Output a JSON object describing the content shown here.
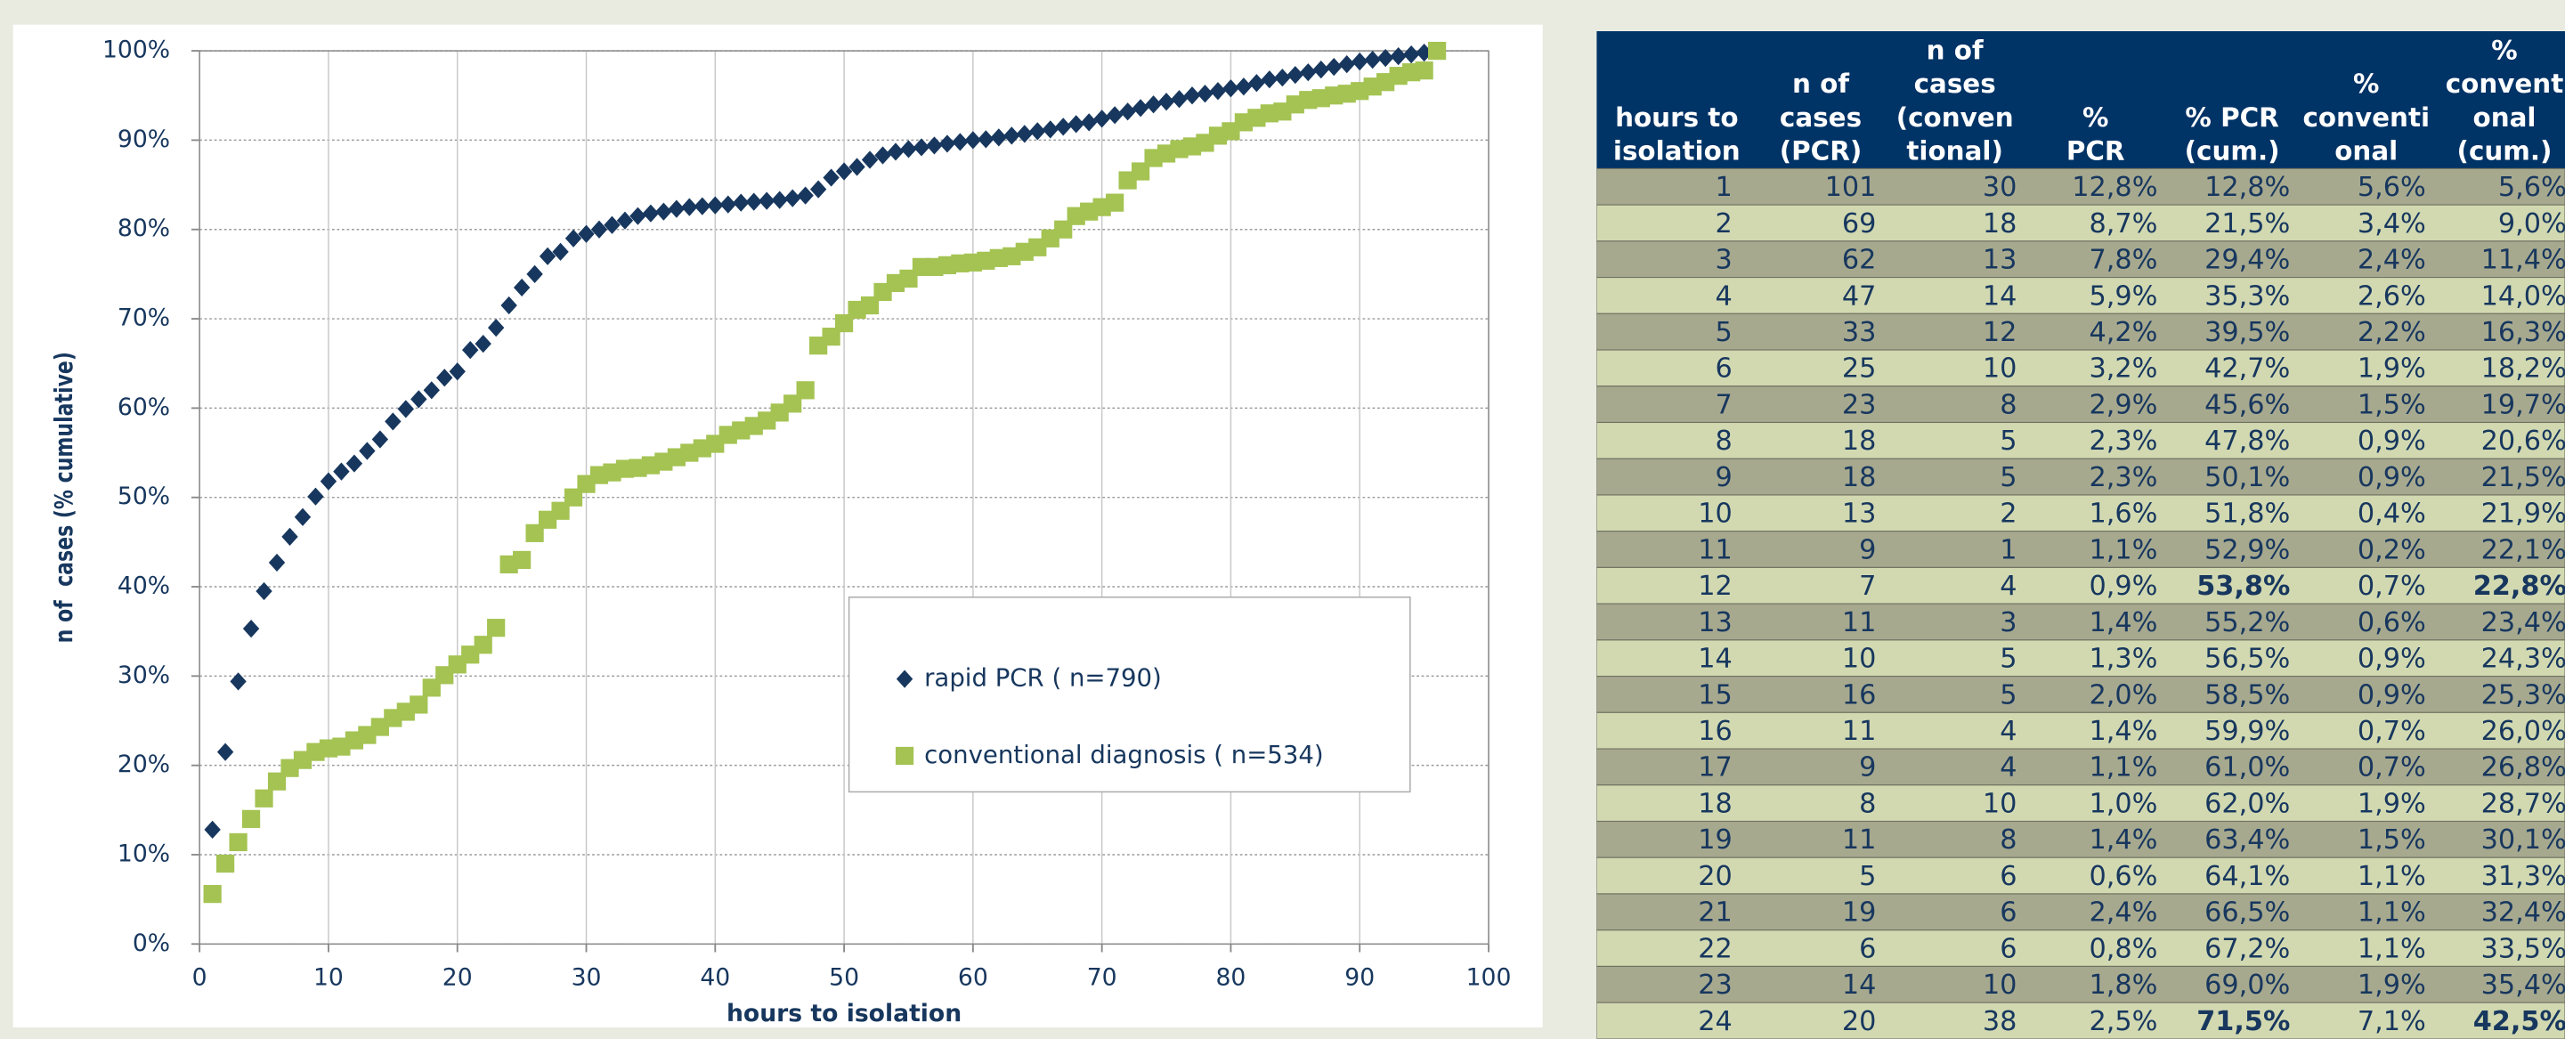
{
  "chart_data": {
    "type": "scatter",
    "x_label": "hours to isolation",
    "y_label": "n of  cases (% cumulative)",
    "x": [
      1,
      2,
      3,
      4,
      5,
      6,
      7,
      8,
      9,
      10,
      11,
      12,
      13,
      14,
      15,
      16,
      17,
      18,
      19,
      20,
      21,
      22,
      23,
      24,
      25,
      26,
      27,
      28,
      29,
      30,
      31,
      32,
      33,
      34,
      35,
      36,
      37,
      38,
      39,
      40,
      41,
      42,
      43,
      44,
      45,
      46,
      47,
      48,
      49,
      50,
      51,
      52,
      53,
      54,
      55,
      56,
      57,
      58,
      59,
      60,
      61,
      62,
      63,
      64,
      65,
      66,
      67,
      68,
      69,
      70,
      71,
      72,
      73,
      74,
      75,
      76,
      77,
      78,
      79,
      80,
      81,
      82,
      83,
      84,
      85,
      86,
      87,
      88,
      89,
      90,
      91,
      92,
      93,
      94,
      95,
      96
    ],
    "series": [
      {
        "name": "rapid PCR ( n=790)",
        "color": "#17375e",
        "marker": "diamond",
        "values": [
          12.8,
          21.5,
          29.4,
          35.3,
          39.5,
          42.7,
          45.6,
          47.8,
          50.1,
          51.8,
          52.9,
          53.8,
          55.2,
          56.5,
          58.5,
          59.9,
          61.0,
          62.0,
          63.4,
          64.1,
          66.5,
          67.2,
          69.0,
          71.5,
          73.5,
          75,
          77,
          77.5,
          79,
          79.5,
          80,
          80.5,
          81,
          81.5,
          81.8,
          82,
          82.3,
          82.5,
          82.6,
          82.7,
          82.8,
          83,
          83.1,
          83.2,
          83.3,
          83.5,
          83.8,
          84.5,
          85.8,
          86.5,
          87,
          87.8,
          88.3,
          88.7,
          89,
          89.2,
          89.4,
          89.6,
          89.8,
          90,
          90.1,
          90.3,
          90.5,
          90.7,
          91,
          91.2,
          91.5,
          91.8,
          92,
          92.4,
          92.8,
          93.2,
          93.6,
          94,
          94.3,
          94.6,
          95,
          95.2,
          95.5,
          95.8,
          96,
          96.4,
          96.8,
          97,
          97.3,
          97.6,
          97.9,
          98.2,
          98.5,
          98.8,
          99,
          99.2,
          99.4,
          99.6,
          99.8,
          null
        ]
      },
      {
        "name": "conventional diagnosis ( n=534)",
        "color": "#a4c352",
        "marker": "square",
        "values": [
          5.6,
          9.0,
          11.4,
          14.0,
          16.3,
          18.2,
          19.7,
          20.6,
          21.5,
          21.9,
          22.1,
          22.8,
          23.4,
          24.3,
          25.3,
          26.0,
          26.8,
          28.7,
          30.1,
          31.3,
          32.4,
          33.5,
          35.4,
          42.5,
          43,
          46,
          47.5,
          48.5,
          50,
          51.5,
          52.5,
          52.8,
          53.2,
          53.3,
          53.6,
          54,
          54.5,
          55,
          55.5,
          56,
          57,
          57.5,
          58,
          58.6,
          59.5,
          60.5,
          62,
          67,
          68,
          69.5,
          71,
          71.5,
          73,
          74,
          74.5,
          75.8,
          75.8,
          76,
          76.2,
          76.3,
          76.5,
          76.8,
          77,
          77.5,
          78,
          79,
          80,
          81.5,
          82,
          82.5,
          83,
          85.5,
          86.5,
          88,
          88.5,
          89,
          89.3,
          89.7,
          90.5,
          91,
          92,
          92.5,
          93,
          93.2,
          94,
          94.5,
          94.7,
          95,
          95.2,
          95.5,
          96,
          96.5,
          97.2,
          97.6,
          97.8,
          100
        ]
      }
    ],
    "xlim": [
      0,
      100
    ],
    "xticks": [
      0,
      10,
      20,
      30,
      40,
      50,
      60,
      70,
      80,
      90,
      100
    ],
    "ylim": [
      0,
      100
    ],
    "yticks": [
      {
        "value": 0,
        "label": "0%"
      },
      {
        "value": 10,
        "label": "10%"
      },
      {
        "value": 20,
        "label": "20%"
      },
      {
        "value": 30,
        "label": "30%"
      },
      {
        "value": 40,
        "label": "40%"
      },
      {
        "value": 50,
        "label": "50%"
      },
      {
        "value": 60,
        "label": "60%"
      },
      {
        "value": 70,
        "label": "70%"
      },
      {
        "value": 80,
        "label": "80%"
      },
      {
        "value": 90,
        "label": "90%"
      },
      {
        "value": 100,
        "label": "100%"
      }
    ],
    "grid": true,
    "legend": "right"
  },
  "table": {
    "header": [
      [
        "hours to",
        "isolation"
      ],
      [
        "n of",
        "cases",
        "(PCR)"
      ],
      [
        "n of",
        "cases",
        "(conven",
        "tional)"
      ],
      [
        "%",
        "PCR"
      ],
      [
        "% PCR",
        "(cum.)"
      ],
      [
        "%",
        "conventi",
        "onal"
      ],
      [
        "%",
        "convent",
        "onal",
        "(cum.)"
      ]
    ],
    "rows": [
      [
        1,
        101,
        30,
        "12,8%",
        "12,8%",
        "5,6%",
        "5,6%"
      ],
      [
        2,
        69,
        18,
        "8,7%",
        "21,5%",
        "3,4%",
        "9,0%"
      ],
      [
        3,
        62,
        13,
        "7,8%",
        "29,4%",
        "2,4%",
        "11,4%"
      ],
      [
        4,
        47,
        14,
        "5,9%",
        "35,3%",
        "2,6%",
        "14,0%"
      ],
      [
        5,
        33,
        12,
        "4,2%",
        "39,5%",
        "2,2%",
        "16,3%"
      ],
      [
        6,
        25,
        10,
        "3,2%",
        "42,7%",
        "1,9%",
        "18,2%"
      ],
      [
        7,
        23,
        8,
        "2,9%",
        "45,6%",
        "1,5%",
        "19,7%"
      ],
      [
        8,
        18,
        5,
        "2,3%",
        "47,8%",
        "0,9%",
        "20,6%"
      ],
      [
        9,
        18,
        5,
        "2,3%",
        "50,1%",
        "0,9%",
        "21,5%"
      ],
      [
        10,
        13,
        2,
        "1,6%",
        "51,8%",
        "0,4%",
        "21,9%"
      ],
      [
        11,
        9,
        1,
        "1,1%",
        "52,9%",
        "0,2%",
        "22,1%"
      ],
      [
        12,
        7,
        4,
        "0,9%",
        "53,8%",
        "0,7%",
        "22,8%"
      ],
      [
        13,
        11,
        3,
        "1,4%",
        "55,2%",
        "0,6%",
        "23,4%"
      ],
      [
        14,
        10,
        5,
        "1,3%",
        "56,5%",
        "0,9%",
        "24,3%"
      ],
      [
        15,
        16,
        5,
        "2,0%",
        "58,5%",
        "0,9%",
        "25,3%"
      ],
      [
        16,
        11,
        4,
        "1,4%",
        "59,9%",
        "0,7%",
        "26,0%"
      ],
      [
        17,
        9,
        4,
        "1,1%",
        "61,0%",
        "0,7%",
        "26,8%"
      ],
      [
        18,
        8,
        10,
        "1,0%",
        "62,0%",
        "1,9%",
        "28,7%"
      ],
      [
        19,
        11,
        8,
        "1,4%",
        "63,4%",
        "1,5%",
        "30,1%"
      ],
      [
        20,
        5,
        6,
        "0,6%",
        "64,1%",
        "1,1%",
        "31,3%"
      ],
      [
        21,
        19,
        6,
        "2,4%",
        "66,5%",
        "1,1%",
        "32,4%"
      ],
      [
        22,
        6,
        6,
        "0,8%",
        "67,2%",
        "1,1%",
        "33,5%"
      ],
      [
        23,
        14,
        10,
        "1,8%",
        "69,0%",
        "1,9%",
        "35,4%"
      ],
      [
        24,
        20,
        38,
        "2,5%",
        "71,5%",
        "7,1%",
        "42,5%"
      ]
    ],
    "bold_cells": [
      [
        11,
        4
      ],
      [
        11,
        6
      ],
      [
        23,
        4
      ],
      [
        23,
        6
      ]
    ]
  }
}
